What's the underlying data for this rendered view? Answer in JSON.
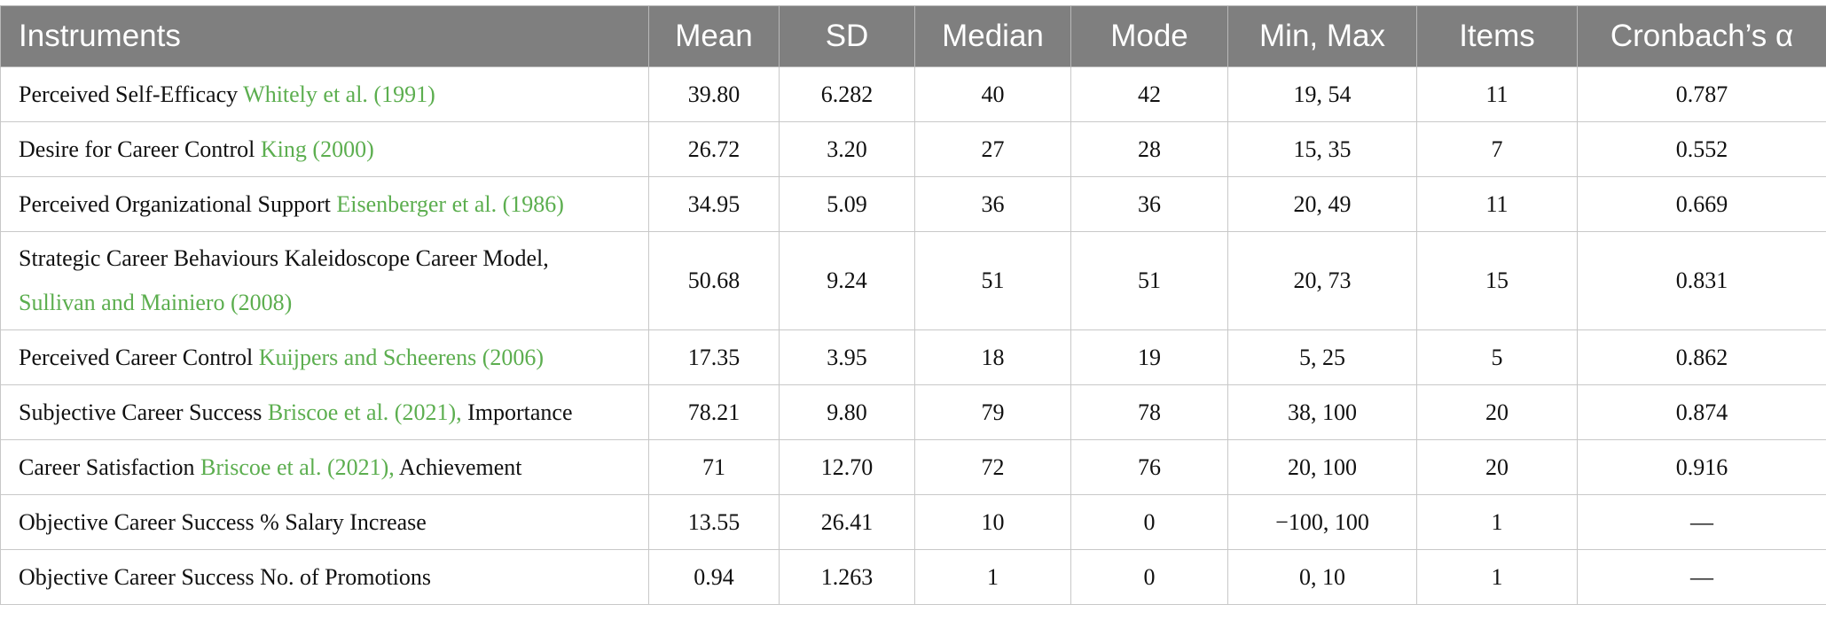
{
  "table": {
    "header": [
      "Instruments",
      "Mean",
      "SD",
      "Median",
      "Mode",
      "Min, Max",
      "Items",
      "Cronbach’s α"
    ],
    "rows": [
      [
        [
          {
            "text": "Perceived Self-Efficacy"
          },
          {
            "text": "Whitely et al. (1991)",
            "citation": true
          }
        ],
        "39.80",
        "6.282",
        "40",
        "42",
        "19, 54",
        "11",
        "0.787"
      ],
      [
        [
          {
            "text": "Desire for Career Control"
          },
          {
            "text": "King (2000)",
            "citation": true
          }
        ],
        "26.72",
        "3.20",
        "27",
        "28",
        "15, 35",
        "7",
        "0.552"
      ],
      [
        [
          {
            "text": "Perceived Organizational Support"
          },
          {
            "text": "Eisenberger et al. (1986)",
            "citation": true
          }
        ],
        "34.95",
        "5.09",
        "36",
        "36",
        "20, 49",
        "11",
        "0.669"
      ],
      [
        [
          {
            "text": "Strategic Career Behaviours Kaleidoscope Career Model,"
          },
          {
            "text": "Sullivan and Mainiero (2008)",
            "citation": true
          }
        ],
        "50.68",
        "9.24",
        "51",
        "51",
        "20, 73",
        "15",
        "0.831"
      ],
      [
        [
          {
            "text": "Perceived Career Control"
          },
          {
            "text": "Kuijpers and Scheerens (2006)",
            "citation": true
          }
        ],
        "17.35",
        "3.95",
        "18",
        "19",
        "5, 25",
        "5",
        "0.862"
      ],
      [
        [
          {
            "text": "Subjective Career Success"
          },
          {
            "text": "Briscoe et al. (2021),",
            "citation": true
          },
          {
            "text": "Importance"
          }
        ],
        "78.21",
        "9.80",
        "79",
        "78",
        "38, 100",
        "20",
        "0.874"
      ],
      [
        [
          {
            "text": "Career Satisfaction"
          },
          {
            "text": "Briscoe et al. (2021),",
            "citation": true
          },
          {
            "text": "Achievement"
          }
        ],
        "71",
        "12.70",
        "72",
        "76",
        "20, 100",
        "20",
        "0.916"
      ],
      [
        [
          {
            "text": "Objective Career Success % Salary Increase"
          }
        ],
        "13.55",
        "26.41",
        "10",
        "0",
        "−100, 100",
        "1",
        "—"
      ],
      [
        [
          {
            "text": "Objective Career Success No. of Promotions"
          }
        ],
        "0.94",
        "1.263",
        "1",
        "0",
        "0, 10",
        "1",
        "—"
      ]
    ]
  }
}
